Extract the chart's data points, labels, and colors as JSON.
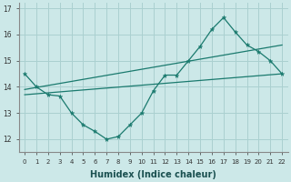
{
  "xlabel": "Humidex (Indice chaleur)",
  "background_color": "#cce8e8",
  "grid_color": "#aad0d0",
  "line_color": "#1a7a6e",
  "xlim": [
    -0.5,
    22.5
  ],
  "ylim": [
    11.5,
    17.2
  ],
  "yticks": [
    12,
    13,
    14,
    15,
    16,
    17
  ],
  "xticks": [
    0,
    1,
    2,
    3,
    4,
    5,
    6,
    7,
    8,
    9,
    10,
    11,
    12,
    13,
    14,
    15,
    16,
    17,
    18,
    19,
    20,
    21,
    22
  ],
  "series1_x": [
    0,
    1,
    2,
    3,
    4,
    5,
    6,
    7,
    8,
    9,
    10,
    11,
    12,
    13,
    14,
    15,
    16,
    17,
    18,
    19,
    20,
    21,
    22
  ],
  "series1_y": [
    14.5,
    14.0,
    13.7,
    13.65,
    13.0,
    12.55,
    12.3,
    12.0,
    12.1,
    12.55,
    13.0,
    13.85,
    14.45,
    14.45,
    15.0,
    15.55,
    16.2,
    16.65,
    16.1,
    15.6,
    15.35,
    15.0,
    14.5
  ],
  "series2_x": [
    0,
    22
  ],
  "series2_y": [
    13.7,
    14.5
  ],
  "series3_x": [
    0,
    22
  ],
  "series3_y": [
    13.9,
    15.6
  ],
  "xlabel_fontsize": 7,
  "xlabel_color": "#1a5050",
  "tick_fontsize": 5.5,
  "tick_color": "#333333"
}
